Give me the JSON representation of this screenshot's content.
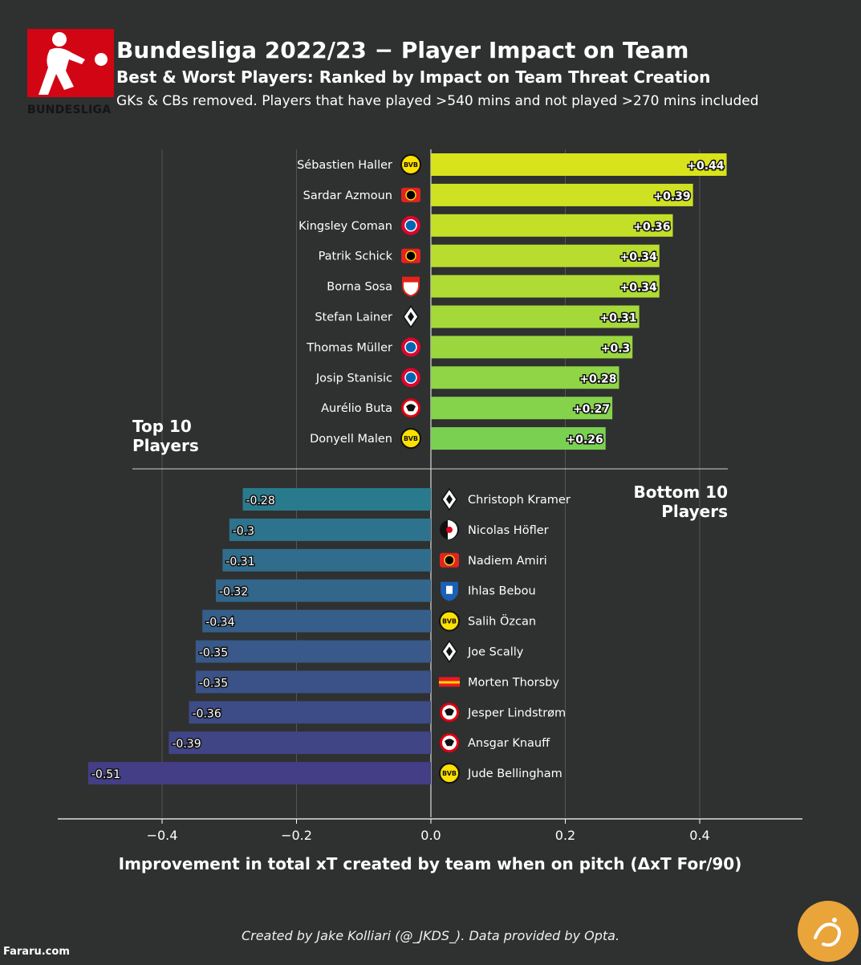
{
  "header": {
    "title": "Bundesliga 2022/23 − Player Impact on Team",
    "subtitle": "Best & Worst Players: Ranked by Impact on Team Threat Creation",
    "note": "GKs & CBs removed. Players that have played  >540 mins and not played >270 mins included",
    "logo_text": "BUNDESLIGA"
  },
  "footer": {
    "credit": "Created by Jake Kolliari (@_JKDS_). Data provided by Opta.",
    "watermark": "Fararu.com"
  },
  "chart_data": {
    "type": "bar",
    "orientation": "horizontal",
    "xlabel": "Improvement in total xT created by team when on pitch (ΔxT For/90)",
    "xlim": [
      -0.555,
      0.555
    ],
    "xticks": [
      -0.4,
      -0.2,
      0.0,
      0.2,
      0.4
    ],
    "xtick_labels": [
      "−0.4",
      "−0.2",
      "0.0",
      "0.2",
      "0.4"
    ],
    "grid": "vertical",
    "groups": [
      {
        "label": "Top 10\nPlayers",
        "players": [
          {
            "name": "Sébastien Haller",
            "club_icon": "dortmund-crest-icon",
            "value": 0.44,
            "label": "+0.44"
          },
          {
            "name": "Sardar Azmoun",
            "club_icon": "leverkusen-crest-icon",
            "value": 0.39,
            "label": "+0.39"
          },
          {
            "name": "Kingsley Coman",
            "club_icon": "bayern-crest-icon",
            "value": 0.36,
            "label": "+0.36"
          },
          {
            "name": "Patrik Schick",
            "club_icon": "leverkusen-crest-icon",
            "value": 0.34,
            "label": "+0.34"
          },
          {
            "name": "Borna Sosa",
            "club_icon": "stuttgart-crest-icon",
            "value": 0.34,
            "label": "+0.34"
          },
          {
            "name": "Stefan Lainer",
            "club_icon": "gladbach-crest-icon",
            "value": 0.31,
            "label": "+0.31"
          },
          {
            "name": "Thomas Müller",
            "club_icon": "bayern-crest-icon",
            "value": 0.3,
            "label": "+0.3"
          },
          {
            "name": "Josip Stanisic",
            "club_icon": "bayern-crest-icon",
            "value": 0.28,
            "label": "+0.28"
          },
          {
            "name": "Aurélio Buta",
            "club_icon": "frankfurt-crest-icon",
            "value": 0.27,
            "label": "+0.27"
          },
          {
            "name": "Donyell Malen",
            "club_icon": "dortmund-crest-icon",
            "value": 0.26,
            "label": "+0.26"
          }
        ]
      },
      {
        "label": "Bottom 10\nPlayers",
        "players": [
          {
            "name": "Christoph Kramer",
            "club_icon": "gladbach-crest-icon",
            "value": -0.28,
            "label": "-0.28"
          },
          {
            "name": "Nicolas Höfler",
            "club_icon": "freiburg-crest-icon",
            "value": -0.3,
            "label": "-0.3"
          },
          {
            "name": "Nadiem Amiri",
            "club_icon": "leverkusen-crest-icon",
            "value": -0.31,
            "label": "-0.31"
          },
          {
            "name": "Ihlas Bebou",
            "club_icon": "hoffenheim-crest-icon",
            "value": -0.32,
            "label": "-0.32"
          },
          {
            "name": "Salih Özcan",
            "club_icon": "dortmund-crest-icon",
            "value": -0.34,
            "label": "-0.34"
          },
          {
            "name": "Joe Scally",
            "club_icon": "gladbach-crest-icon",
            "value": -0.35,
            "label": "-0.35"
          },
          {
            "name": "Morten Thorsby",
            "club_icon": "union-berlin-crest-icon",
            "value": -0.35,
            "label": "-0.35"
          },
          {
            "name": "Jesper Lindstrøm",
            "club_icon": "frankfurt-crest-icon",
            "value": -0.36,
            "label": "-0.36"
          },
          {
            "name": "Ansgar Knauff",
            "club_icon": "frankfurt-crest-icon",
            "value": -0.39,
            "label": "-0.39"
          },
          {
            "name": "Jude Bellingham",
            "club_icon": "dortmund-crest-icon",
            "value": -0.51,
            "label": "-0.51"
          }
        ]
      }
    ],
    "colors": {
      "positive_low": "#7ad151",
      "positive_high": "#d9e31c",
      "negative_low": "#2a7a8e",
      "negative_high": "#433e85",
      "background": "#2f3030",
      "bundesliga_red": "#d20515"
    }
  }
}
